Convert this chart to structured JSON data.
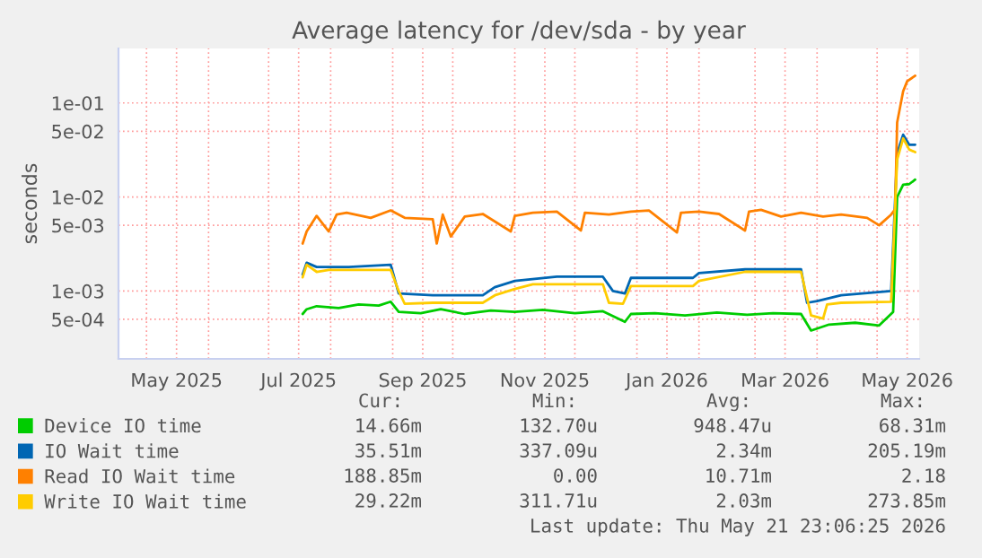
{
  "chart_data": {
    "type": "line",
    "title": "Average latency for /dev/sda - by year",
    "ylabel": "seconds",
    "log": "y",
    "grid": true,
    "legend": "bottom",
    "line_style": "solid",
    "marker": "none",
    "xlim": [
      "2025-04-17",
      "2026-05-22"
    ],
    "xticks": [
      {
        "value": "2025-05-01",
        "label": null
      },
      {
        "value": "2025-05-16",
        "label": "May 2025"
      },
      {
        "value": "2025-06-01",
        "label": null
      },
      {
        "value": "2025-07-01",
        "label": null
      },
      {
        "value": "2025-07-16",
        "label": "Jul 2025"
      },
      {
        "value": "2025-08-01",
        "label": null
      },
      {
        "value": "2025-09-01",
        "label": null
      },
      {
        "value": "2025-09-16",
        "label": "Sep 2025"
      },
      {
        "value": "2025-10-01",
        "label": null
      },
      {
        "value": "2025-11-01",
        "label": null
      },
      {
        "value": "2025-11-16",
        "label": "Nov 2025"
      },
      {
        "value": "2025-12-01",
        "label": null
      },
      {
        "value": "2026-01-01",
        "label": null
      },
      {
        "value": "2026-01-16",
        "label": "Jan 2026"
      },
      {
        "value": "2026-02-01",
        "label": null
      },
      {
        "value": "2026-03-01",
        "label": null
      },
      {
        "value": "2026-03-16",
        "label": "Mar 2026"
      },
      {
        "value": "2026-04-01",
        "label": null
      },
      {
        "value": "2026-05-01",
        "label": null
      },
      {
        "value": "2026-05-16",
        "label": "May 2026"
      }
    ],
    "ylim": [
      0.00019,
      0.38
    ],
    "yticks": [
      {
        "value": 0.0005,
        "label": "5e-04"
      },
      {
        "value": 0.001,
        "label": "1e-03"
      },
      {
        "value": 0.005,
        "label": "5e-03"
      },
      {
        "value": 0.01,
        "label": "1e-02"
      },
      {
        "value": 0.05,
        "label": "5e-02"
      },
      {
        "value": 0.1,
        "label": "1e-01"
      }
    ],
    "series": [
      {
        "name": "Device IO time",
        "color": "#00cc00",
        "x": [
          "2025-07-18",
          "2025-07-20",
          "2025-07-25",
          "2025-08-05",
          "2025-08-15",
          "2025-08-25",
          "2025-08-31",
          "2025-09-04",
          "2025-09-15",
          "2025-09-25",
          "2025-10-07",
          "2025-10-20",
          "2025-11-01",
          "2025-11-15",
          "2025-12-01",
          "2025-12-15",
          "2025-12-26",
          "2025-12-29",
          "2026-01-10",
          "2026-01-25",
          "2026-02-10",
          "2026-02-25",
          "2026-03-10",
          "2026-03-24",
          "2026-03-29",
          "2026-04-07",
          "2026-04-20",
          "2026-05-02",
          "2026-05-09",
          "2026-05-11",
          "2026-05-14",
          "2026-05-17",
          "2026-05-20"
        ],
        "values": [
          0.00057,
          0.00064,
          0.00069,
          0.00066,
          0.00072,
          0.0007,
          0.00077,
          0.0006,
          0.00058,
          0.00064,
          0.00057,
          0.00062,
          0.0006,
          0.00063,
          0.00058,
          0.00061,
          0.00047,
          0.00057,
          0.00058,
          0.00055,
          0.00059,
          0.00056,
          0.00058,
          0.00057,
          0.00038,
          0.00044,
          0.00046,
          0.00043,
          0.0006,
          0.01,
          0.0135,
          0.0137,
          0.0153
        ]
      },
      {
        "name": "IO Wait time",
        "color": "#0066b3",
        "x": [
          "2025-07-18",
          "2025-07-20",
          "2025-07-25",
          "2025-08-10",
          "2025-08-31",
          "2025-09-04",
          "2025-09-21",
          "2025-10-16",
          "2025-10-22",
          "2025-11-01",
          "2025-11-22",
          "2025-12-15",
          "2025-12-20",
          "2025-12-26",
          "2025-12-29",
          "2026-01-07",
          "2026-01-29",
          "2026-02-01",
          "2026-02-24",
          "2026-03-24",
          "2026-03-27",
          "2026-04-01",
          "2026-04-13",
          "2026-05-08",
          "2026-05-11",
          "2026-05-14",
          "2026-05-17",
          "2026-05-20"
        ],
        "values": [
          0.0015,
          0.002,
          0.0018,
          0.0018,
          0.0019,
          0.00094,
          0.0009,
          0.0009,
          0.0011,
          0.00128,
          0.00142,
          0.00142,
          0.001,
          0.00094,
          0.00138,
          0.00138,
          0.00138,
          0.00155,
          0.0017,
          0.0017,
          0.00075,
          0.00078,
          0.0009,
          0.001,
          0.029,
          0.046,
          0.036,
          0.036
        ]
      },
      {
        "name": "Read IO Wait time",
        "color": "#ff8000",
        "x": [
          "2025-07-18",
          "2025-07-20",
          "2025-07-25",
          "2025-07-31",
          "2025-08-04",
          "2025-08-09",
          "2025-08-21",
          "2025-08-31",
          "2025-09-07",
          "2025-09-21",
          "2025-09-23",
          "2025-09-26",
          "2025-09-30",
          "2025-10-07",
          "2025-10-16",
          "2025-10-30",
          "2025-11-01",
          "2025-11-10",
          "2025-11-22",
          "2025-12-04",
          "2025-12-06",
          "2025-12-18",
          "2025-12-29",
          "2026-01-07",
          "2026-01-21",
          "2026-01-23",
          "2026-02-01",
          "2026-02-11",
          "2026-02-24",
          "2026-02-26",
          "2026-03-04",
          "2026-03-14",
          "2026-03-24",
          "2026-04-04",
          "2026-04-13",
          "2026-04-26",
          "2026-05-02",
          "2026-05-08",
          "2026-05-10",
          "2026-05-11",
          "2026-05-14",
          "2026-05-16",
          "2026-05-20"
        ],
        "values": [
          0.0032,
          0.0043,
          0.0063,
          0.0043,
          0.0065,
          0.0068,
          0.006,
          0.0072,
          0.006,
          0.0058,
          0.0032,
          0.0065,
          0.0038,
          0.0062,
          0.0066,
          0.0043,
          0.0063,
          0.0068,
          0.007,
          0.0044,
          0.0068,
          0.0065,
          0.007,
          0.0072,
          0.0042,
          0.0068,
          0.007,
          0.0066,
          0.0044,
          0.007,
          0.0073,
          0.0062,
          0.0068,
          0.0062,
          0.0065,
          0.006,
          0.005,
          0.0065,
          0.0074,
          0.062,
          0.133,
          0.17,
          0.195
        ]
      },
      {
        "name": "Write IO Wait time",
        "color": "#ffcc00",
        "x": [
          "2025-07-18",
          "2025-07-20",
          "2025-07-25",
          "2025-07-31",
          "2025-08-31",
          "2025-09-04",
          "2025-09-07",
          "2025-09-21",
          "2025-10-16",
          "2025-10-22",
          "2025-11-01",
          "2025-11-10",
          "2025-12-15",
          "2025-12-18",
          "2025-12-25",
          "2025-12-29",
          "2026-01-07",
          "2026-01-29",
          "2026-02-01",
          "2026-02-24",
          "2026-03-24",
          "2026-03-29",
          "2026-04-04",
          "2026-04-06",
          "2026-04-13",
          "2026-05-08",
          "2026-05-11",
          "2026-05-14",
          "2026-05-17",
          "2026-05-20"
        ],
        "values": [
          0.0014,
          0.0019,
          0.0016,
          0.00168,
          0.00168,
          0.001,
          0.00073,
          0.00075,
          0.00075,
          0.0009,
          0.00105,
          0.00118,
          0.00118,
          0.00075,
          0.00073,
          0.00113,
          0.00113,
          0.00113,
          0.00128,
          0.0016,
          0.0016,
          0.00055,
          0.00051,
          0.00072,
          0.00075,
          0.00077,
          0.025,
          0.042,
          0.032,
          0.03
        ]
      }
    ],
    "annotations": [
      "Cur:",
      "Min:",
      "Avg:",
      "Max:",
      "14.66m",
      "132.70u",
      "948.47u",
      "68.31m",
      "35.51m",
      "337.09u",
      "2.34m",
      "205.19m",
      "188.85m",
      "0.00",
      "10.71m",
      "2.18",
      "29.22m",
      "311.71u",
      "2.03m",
      "273.85m",
      "Last update: Thu May 21 23:06:25 2026"
    ]
  }
}
